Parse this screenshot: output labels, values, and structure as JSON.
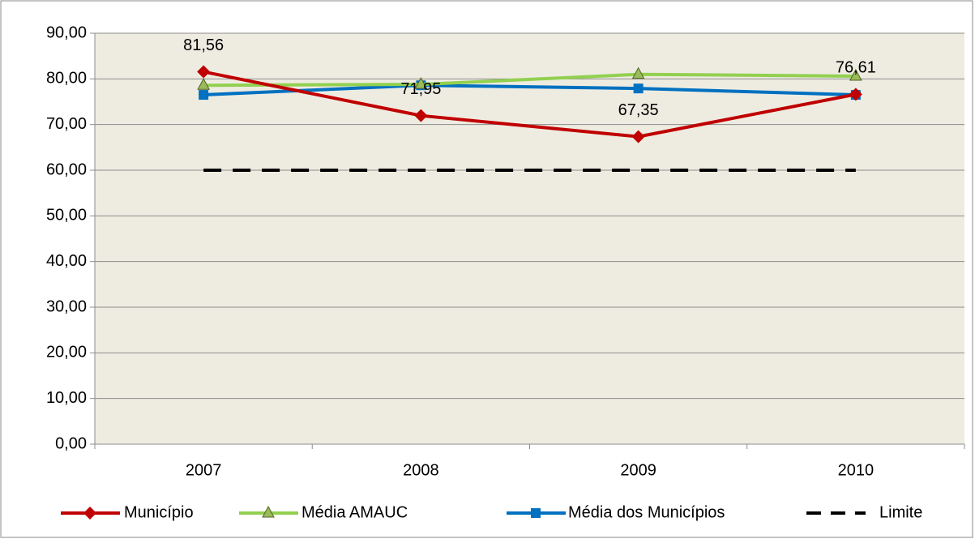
{
  "chart_data": {
    "type": "line",
    "categories": [
      "2007",
      "2008",
      "2009",
      "2010"
    ],
    "series": [
      {
        "name": "Município",
        "color": "#c00000",
        "marker": "diamond",
        "values": [
          81.56,
          71.95,
          67.35,
          76.61
        ],
        "value_labels": [
          "81,56",
          "71,95",
          "67,35",
          "76,61"
        ]
      },
      {
        "name": "Média AMAUC",
        "color": "#92d050",
        "marker": "triangle",
        "values": [
          78.6,
          78.8,
          81.0,
          80.6
        ]
      },
      {
        "name": "Média dos Municípios",
        "color": "#0070c0",
        "marker": "square",
        "values": [
          76.5,
          78.6,
          77.9,
          76.5
        ]
      },
      {
        "name": "Limite",
        "color": "#000000",
        "dashed": true,
        "values": [
          60,
          60,
          60,
          60
        ]
      }
    ],
    "ylim": [
      0,
      90
    ],
    "yticks": [
      {
        "value": 0,
        "label": "0,00"
      },
      {
        "value": 10,
        "label": "10,00"
      },
      {
        "value": 20,
        "label": "20,00"
      },
      {
        "value": 30,
        "label": "30,00"
      },
      {
        "value": 40,
        "label": "40,00"
      },
      {
        "value": 50,
        "label": "50,00"
      },
      {
        "value": 60,
        "label": "60,00"
      },
      {
        "value": 70,
        "label": "70,00"
      },
      {
        "value": 80,
        "label": "80,00"
      },
      {
        "value": 90,
        "label": "90,00"
      }
    ],
    "grid": true,
    "legend": "bottom"
  }
}
